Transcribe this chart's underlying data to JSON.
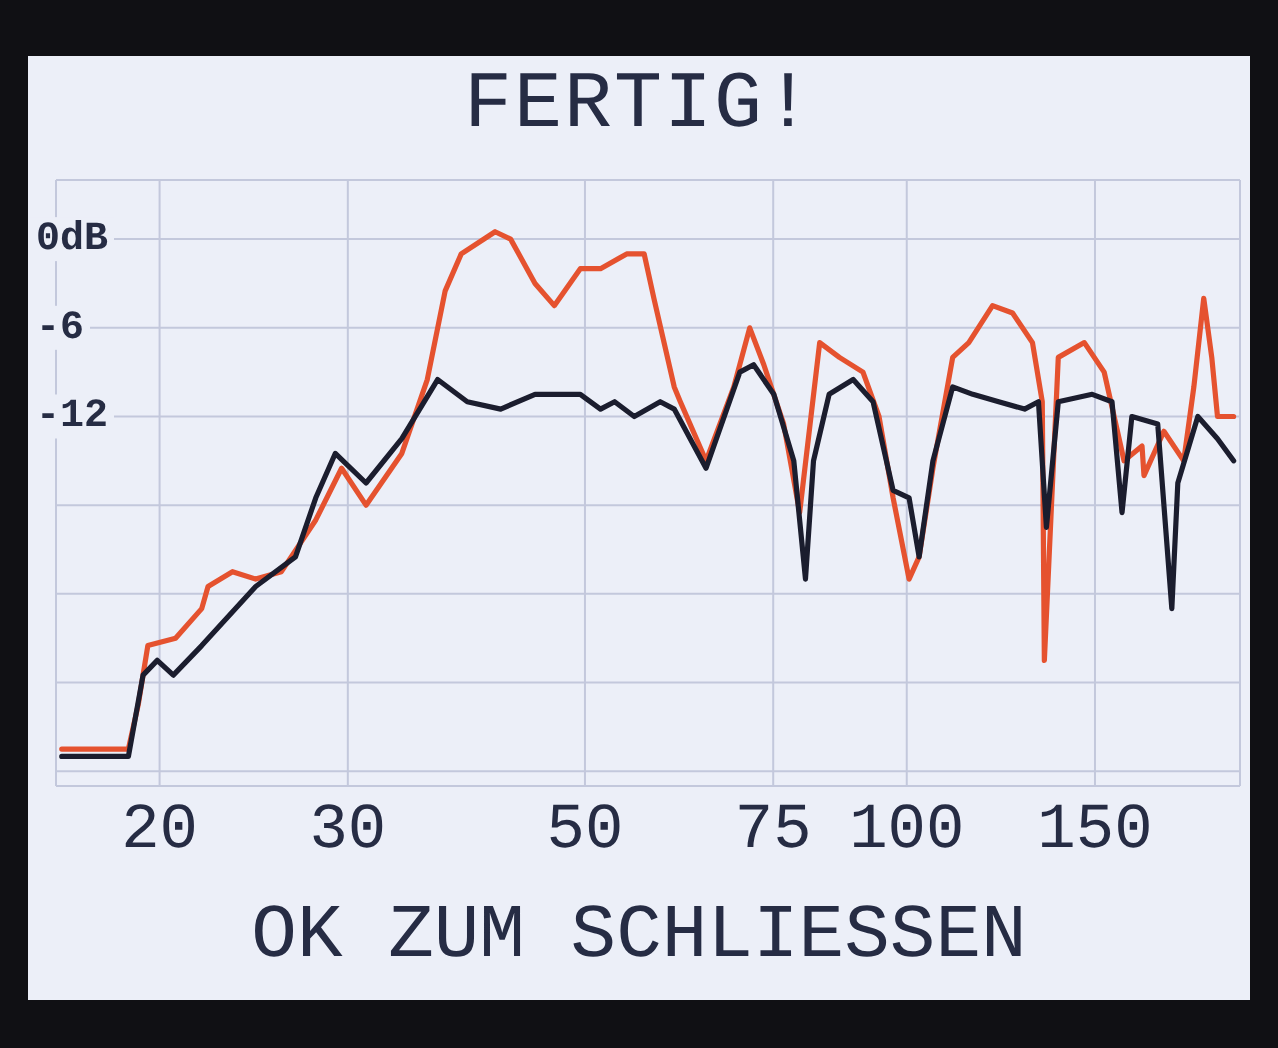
{
  "chart_data": {
    "type": "line",
    "title": "FERTIG!",
    "annotations": [
      "OK ZUM SCHLIESSEN"
    ],
    "log": "x",
    "grid": true,
    "marker": "none",
    "xlim": [
      16,
      205
    ],
    "xticks": [
      20,
      30,
      50,
      75,
      100,
      150
    ],
    "ylim": [
      -37,
      4
    ],
    "yticks": [
      {
        "value": 0,
        "label": "0dB"
      },
      -6,
      -12,
      {
        "value": -18,
        "label": null
      },
      {
        "value": -24,
        "label": null
      },
      {
        "value": -30,
        "label": null
      },
      {
        "value": -36,
        "label": null
      }
    ],
    "series": [
      {
        "color": "#e5522f",
        "x": [
          16.2,
          18.7,
          19.1,
          19.5,
          20.7,
          21.9,
          22.2,
          23.4,
          24.6,
          26.0,
          28.0,
          29.6,
          31.2,
          33.7,
          35.6,
          37.0,
          38.3,
          41.2,
          42.6,
          44.9,
          46.8,
          49.5,
          51.7,
          54.7,
          56.8,
          58.0,
          60.6,
          61.4,
          64.9,
          68.9,
          71.3,
          73.5,
          76.7,
          79.4,
          82.9,
          86.5,
          91.0,
          94.2,
          97.1,
          100.5,
          102.7,
          105.8,
          110.4,
          114.3,
          120.3,
          125.6,
          131.1,
          133.9,
          134.5,
          138.6,
          146.6,
          153.0,
          159.7,
          166.0,
          166.7,
          174.0,
          181.6,
          185.6,
          189.6,
          192.9,
          195.3,
          202.2
        ],
        "values": [
          -34.5,
          -34.5,
          -31.5,
          -27.5,
          -27,
          -25,
          -23.5,
          -22.5,
          -23,
          -22.5,
          -19,
          -15.5,
          -18,
          -14.5,
          -9.5,
          -3.5,
          -1,
          0.5,
          0,
          -3,
          -4.5,
          -2,
          -2,
          -1,
          -1,
          -4,
          -10,
          -11,
          -15,
          -10,
          -6,
          -8.5,
          -12.5,
          -18.5,
          -7,
          -8,
          -9,
          -12,
          -17.5,
          -23,
          -21.5,
          -15.5,
          -8,
          -7,
          -4.5,
          -5,
          -7,
          -11,
          -28.5,
          -8,
          -7,
          -9,
          -15,
          -14,
          -16,
          -13,
          -15,
          -10,
          -4,
          -8,
          -12,
          -12
        ]
      },
      {
        "color": "#1b1d2e",
        "x": [
          16.2,
          18.7,
          19.3,
          19.9,
          20.6,
          21.9,
          24.6,
          26.8,
          28.0,
          29.2,
          31.2,
          33.7,
          36.4,
          38.8,
          41.7,
          44.9,
          49.5,
          51.7,
          53.3,
          55.6,
          58.8,
          60.6,
          64.9,
          69.8,
          71.9,
          75.1,
          78.4,
          80.4,
          81.8,
          84.6,
          89.1,
          93.0,
          97.1,
          100.5,
          102.7,
          105.8,
          110.4,
          115.3,
          121.9,
          128.9,
          132.8,
          135.1,
          138.6,
          149.1,
          155.6,
          159.0,
          162.4,
          171.7,
          177.0,
          179.3,
          187.2,
          195.3,
          202.2
        ],
        "values": [
          -35,
          -35,
          -29.5,
          -28.5,
          -29.5,
          -27.5,
          -23.5,
          -21.5,
          -17.5,
          -14.5,
          -16.5,
          -13.5,
          -9.5,
          -11,
          -11.5,
          -10.5,
          -10.5,
          -11.5,
          -11,
          -12,
          -11,
          -11.5,
          -15.5,
          -9,
          -8.5,
          -10.5,
          -15,
          -23,
          -15,
          -10.5,
          -9.5,
          -11,
          -17,
          -17.5,
          -21.5,
          -15,
          -10,
          -10.5,
          -11,
          -11.5,
          -11,
          -19.5,
          -11,
          -10.5,
          -11,
          -18.5,
          -12,
          -12.5,
          -25,
          -16.5,
          -12,
          -13.5,
          -15
        ]
      }
    ]
  }
}
